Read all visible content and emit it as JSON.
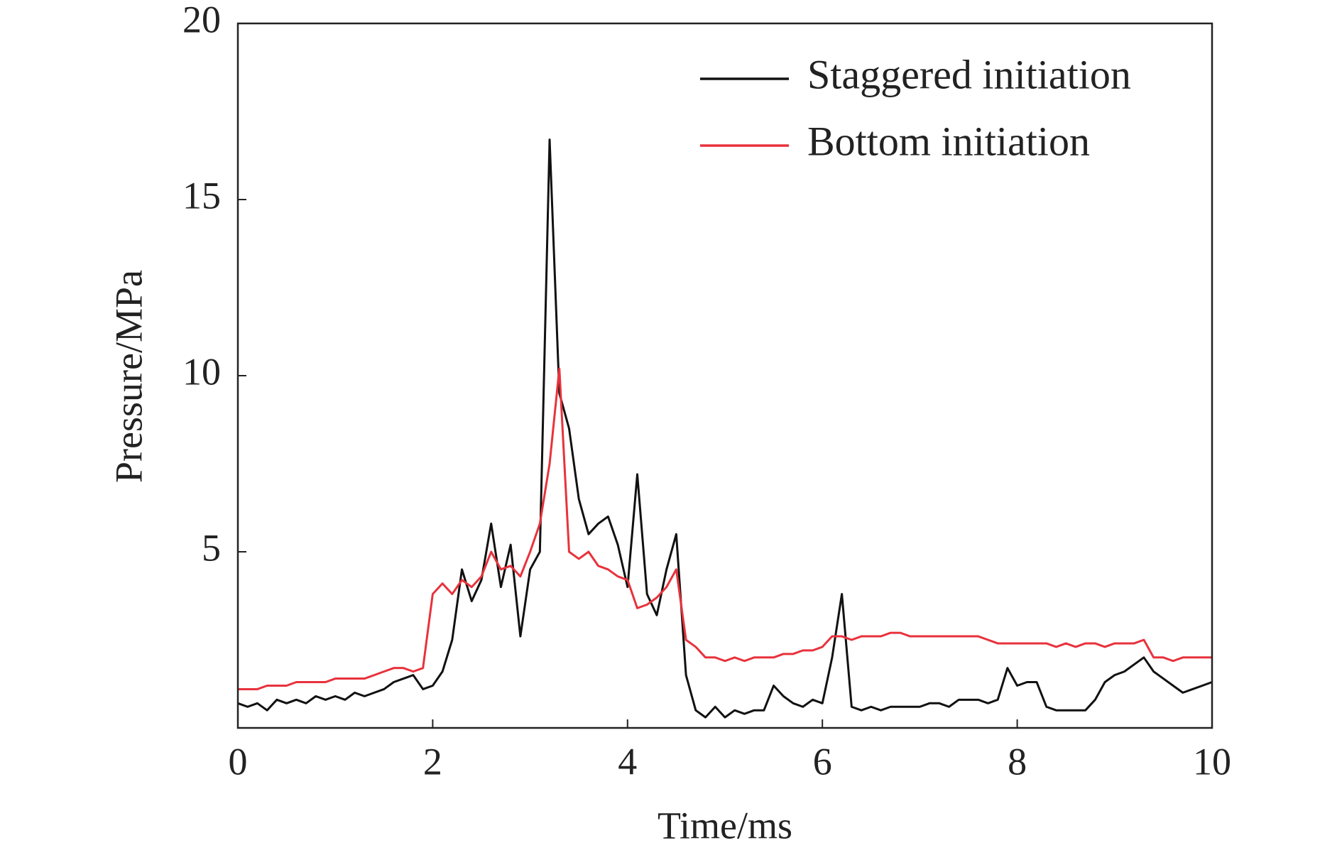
{
  "chart_data": {
    "type": "line",
    "x_label": "Time/ms",
    "y_label": "Pressure/MPa",
    "xlim": [
      0,
      10
    ],
    "ylim": [
      0,
      20
    ],
    "xticks": [
      0,
      2,
      4,
      6,
      8,
      10
    ],
    "yticks": [
      5,
      10,
      15,
      20
    ],
    "legend": "upper right",
    "x": [
      0,
      0.1,
      0.2,
      0.3,
      0.4,
      0.5,
      0.6,
      0.7,
      0.8,
      0.9,
      1,
      1.1,
      1.2,
      1.3,
      1.4,
      1.5,
      1.6,
      1.7,
      1.8,
      1.9,
      2,
      2.1,
      2.2,
      2.3,
      2.4,
      2.5,
      2.6,
      2.7,
      2.8,
      2.9,
      3,
      3.1,
      3.2,
      3.3,
      3.4,
      3.5,
      3.6,
      3.7,
      3.8,
      3.9,
      4,
      4.1,
      4.2,
      4.3,
      4.4,
      4.5,
      4.6,
      4.7,
      4.8,
      4.9,
      5,
      5.1,
      5.2,
      5.3,
      5.4,
      5.5,
      5.6,
      5.7,
      5.8,
      5.9,
      6,
      6.1,
      6.2,
      6.3,
      6.4,
      6.5,
      6.6,
      6.7,
      6.8,
      6.9,
      7,
      7.1,
      7.2,
      7.3,
      7.4,
      7.5,
      7.6,
      7.7,
      7.8,
      7.9,
      8,
      8.1,
      8.2,
      8.3,
      8.4,
      8.5,
      8.6,
      8.7,
      8.8,
      8.9,
      9,
      9.1,
      9.2,
      9.3,
      9.4,
      9.5,
      9.6,
      9.7,
      9.8,
      9.9,
      10
    ],
    "series": [
      {
        "name": "Staggered initiation",
        "color": "#111111",
        "values": [
          0.7,
          0.6,
          0.7,
          0.5,
          0.8,
          0.7,
          0.8,
          0.7,
          0.9,
          0.8,
          0.9,
          0.8,
          1.0,
          0.9,
          1.0,
          1.1,
          1.3,
          1.4,
          1.5,
          1.1,
          1.2,
          1.6,
          2.5,
          4.5,
          3.6,
          4.2,
          5.8,
          4.0,
          5.2,
          2.6,
          4.5,
          5.0,
          16.7,
          9.5,
          8.5,
          6.5,
          5.5,
          5.8,
          6.0,
          5.2,
          4.0,
          7.2,
          3.8,
          3.2,
          4.5,
          5.5,
          1.5,
          0.5,
          0.3,
          0.6,
          0.3,
          0.5,
          0.4,
          0.5,
          0.5,
          1.2,
          0.9,
          0.7,
          0.6,
          0.8,
          0.7,
          2.0,
          3.8,
          0.6,
          0.5,
          0.6,
          0.5,
          0.6,
          0.6,
          0.6,
          0.6,
          0.7,
          0.7,
          0.6,
          0.8,
          0.8,
          0.8,
          0.7,
          0.8,
          1.7,
          1.2,
          1.3,
          1.3,
          0.6,
          0.5,
          0.5,
          0.5,
          0.5,
          0.8,
          1.3,
          1.5,
          1.6,
          1.8,
          2.0,
          1.6,
          1.4,
          1.2,
          1.0,
          1.1,
          1.2,
          1.3
        ]
      },
      {
        "name": "Bottom initiation",
        "color": "#e8323c",
        "values": [
          1.1,
          1.1,
          1.1,
          1.2,
          1.2,
          1.2,
          1.3,
          1.3,
          1.3,
          1.3,
          1.4,
          1.4,
          1.4,
          1.4,
          1.5,
          1.6,
          1.7,
          1.7,
          1.6,
          1.7,
          3.8,
          4.1,
          3.8,
          4.2,
          4.0,
          4.3,
          5.0,
          4.5,
          4.6,
          4.3,
          5.0,
          5.8,
          7.5,
          10.2,
          5.0,
          4.8,
          5.0,
          4.6,
          4.5,
          4.3,
          4.2,
          3.4,
          3.5,
          3.7,
          4.0,
          4.5,
          2.5,
          2.3,
          2.0,
          2.0,
          1.9,
          2.0,
          1.9,
          2.0,
          2.0,
          2.0,
          2.1,
          2.1,
          2.2,
          2.2,
          2.3,
          2.6,
          2.6,
          2.5,
          2.6,
          2.6,
          2.6,
          2.7,
          2.7,
          2.6,
          2.6,
          2.6,
          2.6,
          2.6,
          2.6,
          2.6,
          2.6,
          2.5,
          2.4,
          2.4,
          2.4,
          2.4,
          2.4,
          2.4,
          2.3,
          2.4,
          2.3,
          2.4,
          2.4,
          2.3,
          2.4,
          2.4,
          2.4,
          2.5,
          2.0,
          2.0,
          1.9,
          2.0,
          2.0,
          2.0,
          2.0
        ]
      }
    ]
  }
}
